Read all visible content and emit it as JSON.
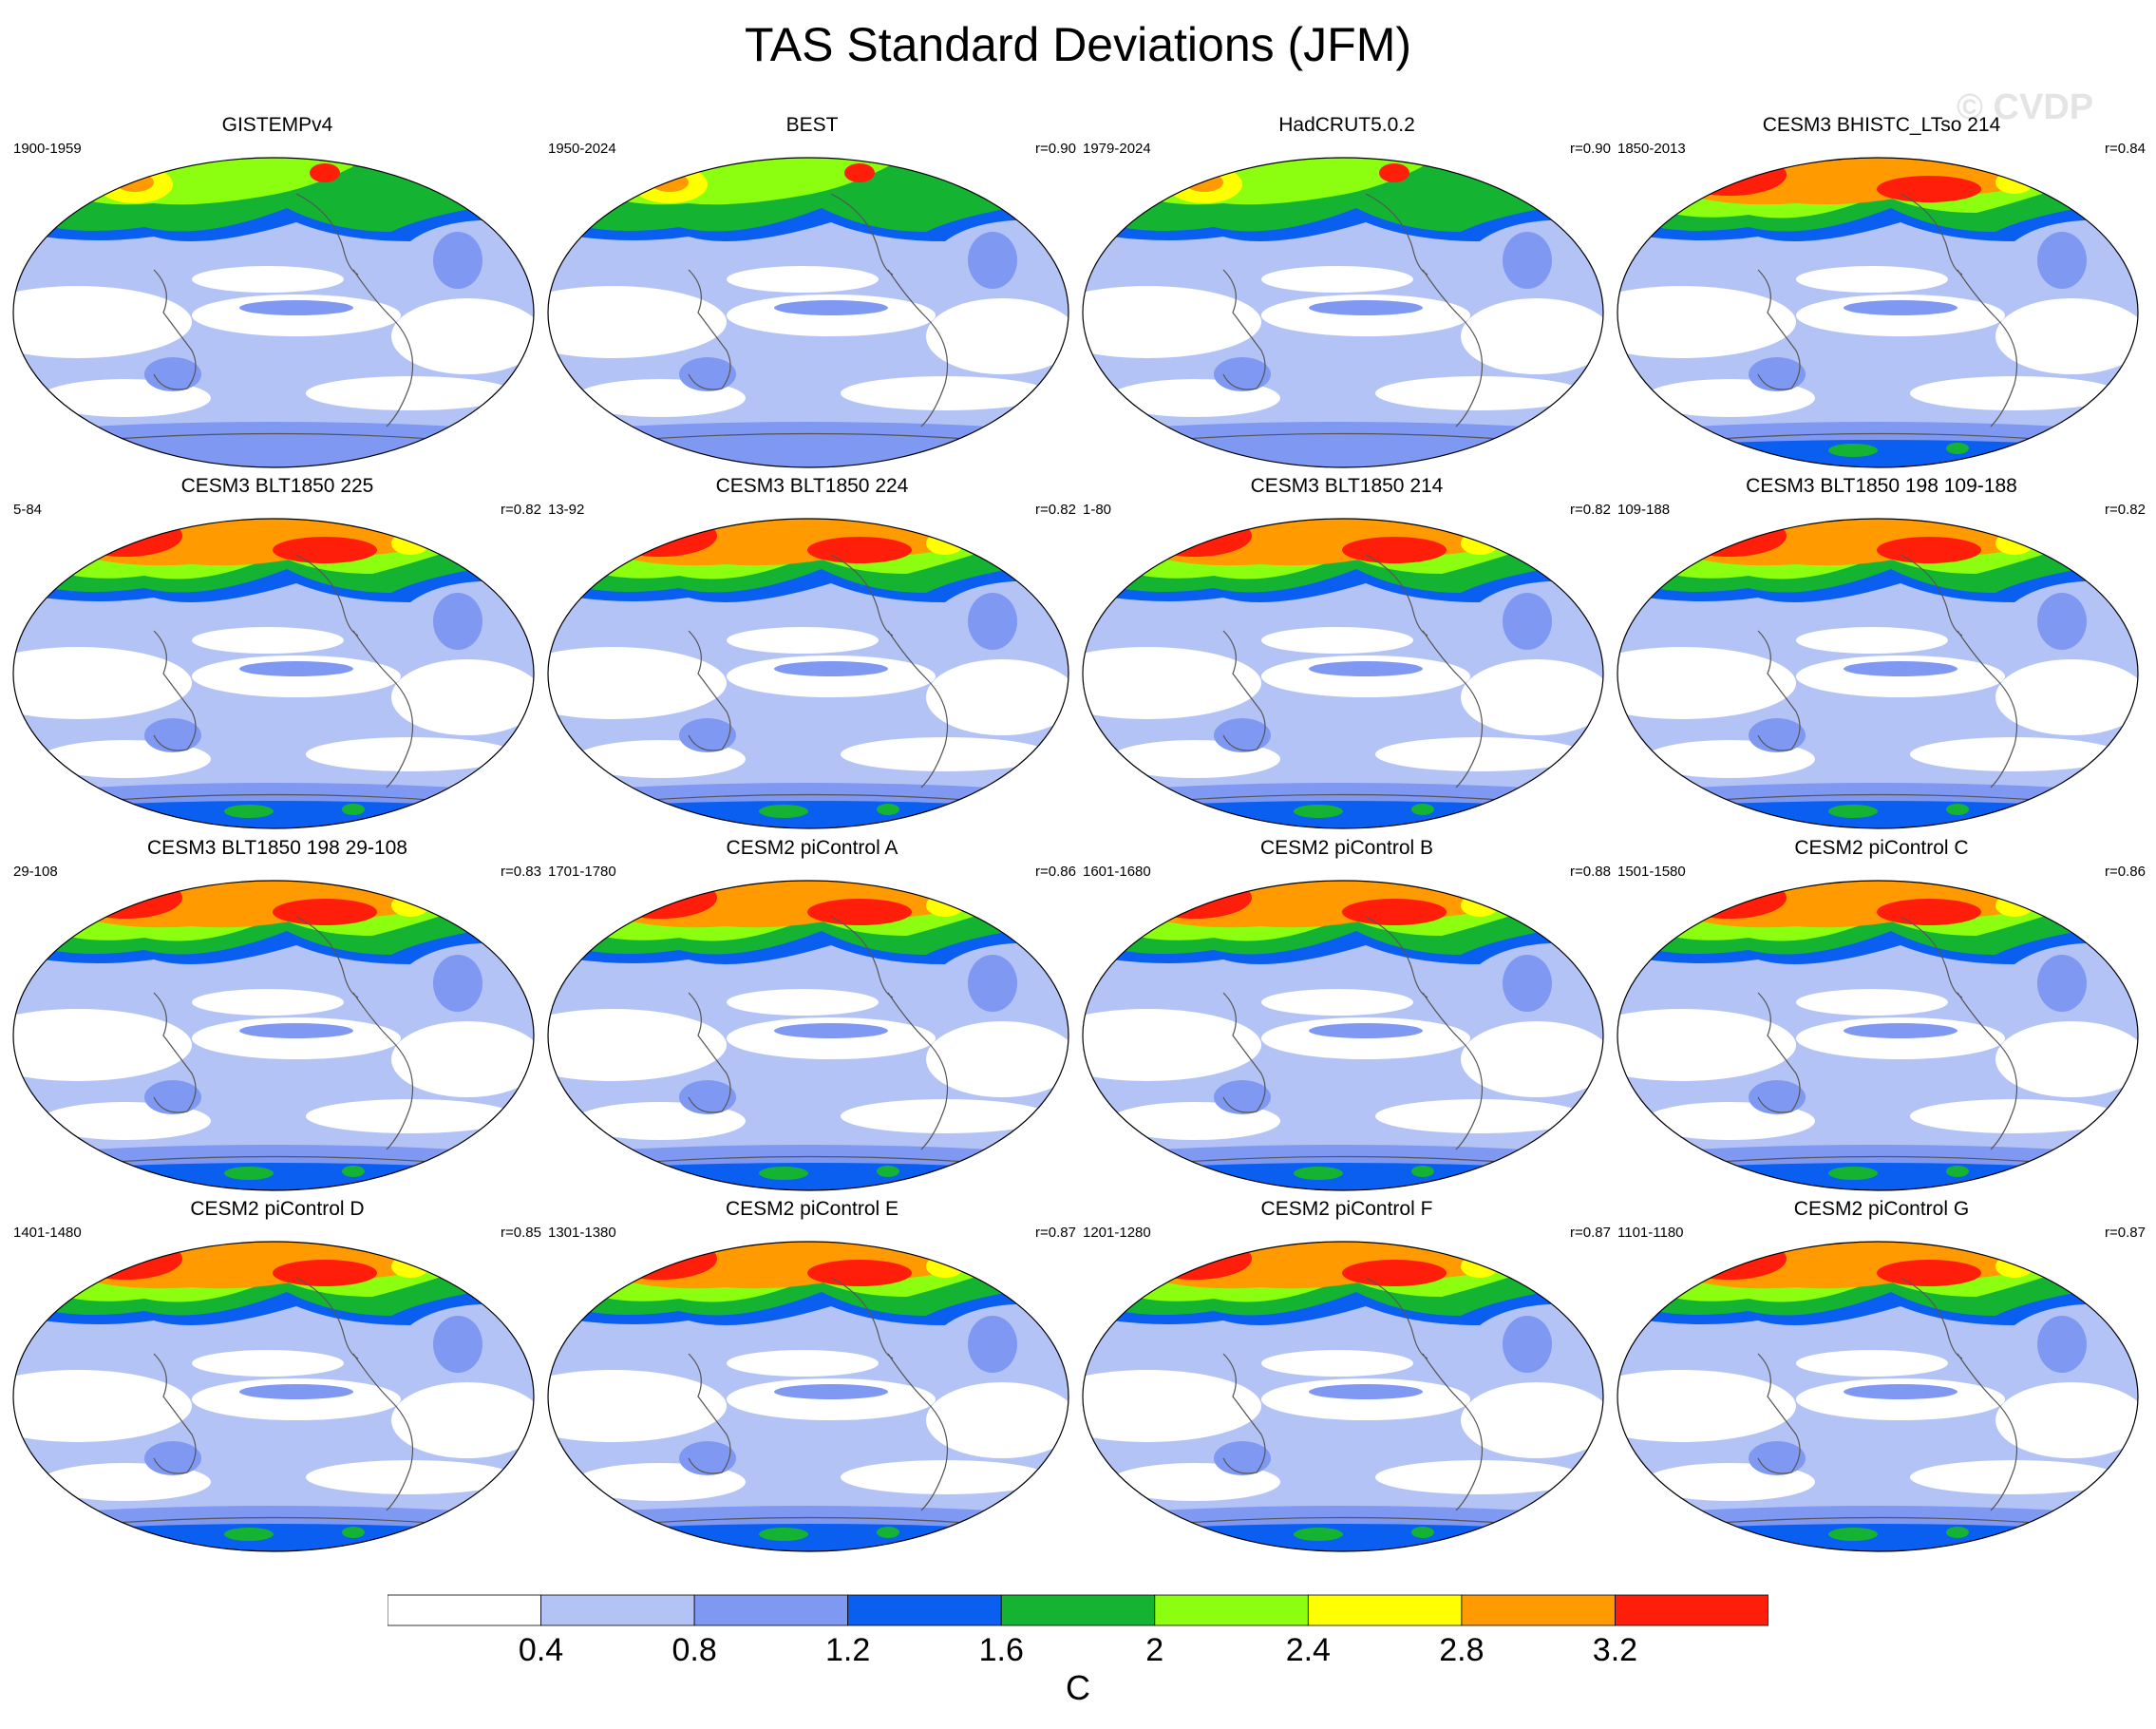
{
  "title": "TAS Standard Deviations (JFM)",
  "watermark": "© CVDP",
  "panels": [
    {
      "title": "GISTEMPv4",
      "period": "1900-1959",
      "r": "",
      "pattern": "obs"
    },
    {
      "title": "BEST",
      "period": "1950-2024",
      "r": "r=0.90",
      "pattern": "obs"
    },
    {
      "title": "HadCRUT5.0.2",
      "period": "1979-2024",
      "r": "r=0.90",
      "pattern": "obs"
    },
    {
      "title": "CESM3 BHISTC_LTso 214",
      "period": "1850-2013",
      "r": "r=0.84",
      "pattern": "model"
    },
    {
      "title": "CESM3 BLT1850 225",
      "period": "5-84",
      "r": "r=0.82",
      "pattern": "model"
    },
    {
      "title": "CESM3 BLT1850 224",
      "period": "13-92",
      "r": "r=0.82",
      "pattern": "model"
    },
    {
      "title": "CESM3 BLT1850 214",
      "period": "1-80",
      "r": "r=0.82",
      "pattern": "model"
    },
    {
      "title": "CESM3 BLT1850 198 109-188",
      "period": "109-188",
      "r": "r=0.82",
      "pattern": "model"
    },
    {
      "title": "CESM3 BLT1850 198 29-108",
      "period": "29-108",
      "r": "r=0.83",
      "pattern": "model"
    },
    {
      "title": "CESM2 piControl A",
      "period": "1701-1780",
      "r": "r=0.86",
      "pattern": "model"
    },
    {
      "title": "CESM2 piControl B",
      "period": "1601-1680",
      "r": "r=0.88",
      "pattern": "model"
    },
    {
      "title": "CESM2 piControl C",
      "period": "1501-1580",
      "r": "r=0.86",
      "pattern": "model"
    },
    {
      "title": "CESM2 piControl D",
      "period": "1401-1480",
      "r": "r=0.85",
      "pattern": "model"
    },
    {
      "title": "CESM2 piControl E",
      "period": "1301-1380",
      "r": "r=0.87",
      "pattern": "model"
    },
    {
      "title": "CESM2 piControl F",
      "period": "1201-1280",
      "r": "r=0.87",
      "pattern": "model"
    },
    {
      "title": "CESM2 piControl G",
      "period": "1101-1180",
      "r": "r=0.87",
      "pattern": "model"
    }
  ],
  "colorbar": {
    "unit": "C",
    "labels": [
      "0.4",
      "0.8",
      "1.2",
      "1.6",
      "2",
      "2.4",
      "2.8",
      "3.2"
    ],
    "colors": [
      "#ffffff",
      "#b4c3f5",
      "#7f98f2",
      "#0a5ef0",
      "#14b432",
      "#8cff10",
      "#ffff00",
      "#ff9a00",
      "#ff1e0a"
    ]
  }
}
